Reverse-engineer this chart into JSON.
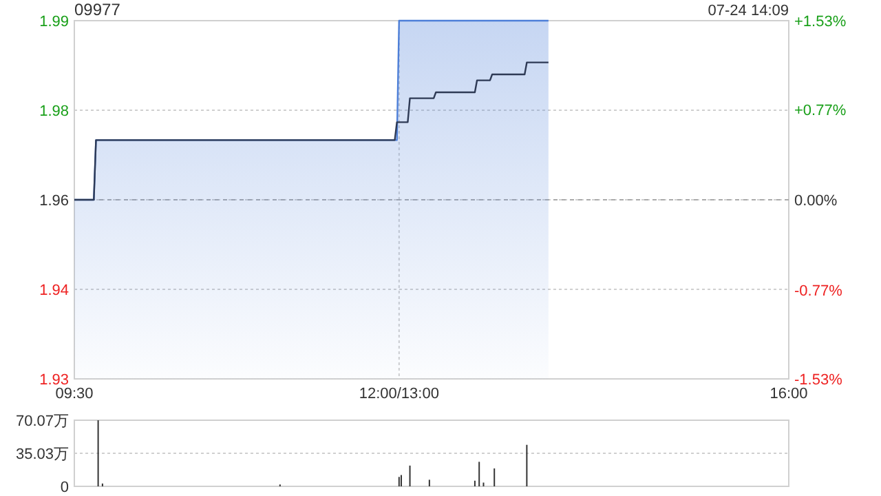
{
  "chart_data": [
    {
      "type": "line",
      "title": "09977",
      "annotations": [
        "07-24 14:09"
      ],
      "categories": [
        "09:30",
        null,
        null,
        null,
        null,
        null,
        null,
        null,
        null,
        null,
        null,
        null,
        null,
        null,
        null,
        null,
        null,
        null,
        null,
        null,
        null,
        null,
        null,
        null,
        null,
        null,
        null,
        null,
        null,
        null,
        null,
        null,
        null,
        null,
        null,
        null,
        null,
        null,
        null,
        null,
        null,
        null,
        null,
        null,
        null,
        null,
        null,
        null,
        null,
        null,
        null,
        null,
        null,
        null,
        null,
        null,
        null,
        null,
        null,
        null,
        null,
        null,
        null,
        null,
        null,
        null,
        null,
        null,
        null,
        null,
        null,
        null,
        null,
        null,
        null,
        null,
        null,
        null,
        null,
        null,
        null,
        null,
        null,
        null,
        null,
        null,
        null,
        null,
        null,
        null,
        null,
        null,
        null,
        null,
        null,
        null,
        null,
        null,
        null,
        null,
        null,
        null,
        null,
        null,
        null,
        null,
        null,
        null,
        null,
        null,
        null,
        null,
        null,
        null,
        null,
        null,
        null,
        null,
        null,
        null,
        null,
        null,
        null,
        null,
        null,
        null,
        null,
        null,
        null,
        null,
        null,
        null,
        null,
        null,
        null,
        null,
        null,
        null,
        null,
        null,
        null,
        null,
        null,
        null,
        null,
        null,
        null,
        null,
        null,
        null,
        "12:00/13:00",
        null,
        null,
        null,
        null,
        null,
        null,
        null,
        null,
        null,
        null,
        null,
        null,
        null,
        null,
        null,
        null,
        null,
        null,
        null,
        null,
        null,
        null,
        null,
        null,
        null,
        null,
        null,
        null,
        null,
        null,
        null,
        null,
        null,
        null,
        null,
        null,
        null,
        null,
        null,
        null,
        null,
        null,
        null,
        null,
        null,
        null,
        null,
        null,
        null,
        null,
        null,
        null,
        null,
        null,
        null,
        null,
        null,
        null,
        null,
        null,
        null,
        null,
        null,
        null,
        null,
        null,
        null,
        null,
        null,
        null,
        null,
        null,
        null,
        null,
        null,
        null,
        null,
        null,
        null,
        null,
        null,
        null,
        null,
        null,
        null,
        null,
        null,
        null,
        null,
        null,
        null,
        null,
        null,
        null,
        null,
        null,
        null,
        null,
        null,
        null,
        null,
        null,
        null,
        null,
        null,
        null,
        null,
        null,
        null,
        null,
        null,
        null,
        null,
        null,
        null,
        null,
        null,
        null,
        null,
        null,
        null,
        null,
        null,
        null,
        null,
        null,
        null,
        null,
        null,
        null,
        null,
        null,
        null,
        null,
        null,
        null,
        null,
        null,
        null,
        null,
        null,
        null,
        null,
        null,
        null,
        null,
        null,
        null,
        null,
        null,
        null,
        null,
        null,
        null,
        null,
        null,
        null,
        null,
        null,
        null,
        null,
        null,
        null,
        null,
        null,
        null,
        null,
        null,
        null,
        null,
        null,
        null,
        null,
        null,
        null,
        null,
        null,
        null,
        null,
        "16:00"
      ],
      "ylim": [
        1.93,
        1.99
      ],
      "yticks": [
        1.93,
        {
          "value": 1.945,
          "label": "1.94"
        },
        1.96,
        {
          "value": 1.975,
          "label": "1.98"
        },
        1.99
      ],
      "y2lim": [
        -1.53,
        1.53
      ],
      "y2ticks": [
        {
          "value": -1.53,
          "label": "-1.53%"
        },
        {
          "value": -0.77,
          "label": "-0.77%"
        },
        {
          "value": 0,
          "label": "0.00%"
        },
        {
          "value": 0.77,
          "label": "+0.77%"
        },
        {
          "value": 1.53,
          "label": "+1.53%"
        }
      ],
      "ref_lines": [
        {
          "axis": "y",
          "value": 1.96,
          "color": "#aaaaaa",
          "line_style": "dashed"
        }
      ],
      "grid": true,
      "series": [
        {
          "type": "area",
          "color": "#4d7fd8",
          "values": [
            1.96,
            1.96,
            1.96,
            1.96,
            1.96,
            1.96,
            1.96,
            1.96,
            1.96,
            1.96,
            1.97,
            1.97,
            1.97,
            1.97,
            1.97,
            1.97,
            1.97,
            1.97,
            1.97,
            1.97,
            1.97,
            1.97,
            1.97,
            1.97,
            1.97,
            1.97,
            1.97,
            1.97,
            1.97,
            1.97,
            1.97,
            1.97,
            1.97,
            1.97,
            1.97,
            1.97,
            1.97,
            1.97,
            1.97,
            1.97,
            1.97,
            1.97,
            1.97,
            1.97,
            1.97,
            1.97,
            1.97,
            1.97,
            1.97,
            1.97,
            1.97,
            1.97,
            1.97,
            1.97,
            1.97,
            1.97,
            1.97,
            1.97,
            1.97,
            1.97,
            1.97,
            1.97,
            1.97,
            1.97,
            1.97,
            1.97,
            1.97,
            1.97,
            1.97,
            1.97,
            1.97,
            1.97,
            1.97,
            1.97,
            1.97,
            1.97,
            1.97,
            1.97,
            1.97,
            1.97,
            1.97,
            1.97,
            1.97,
            1.97,
            1.97,
            1.97,
            1.97,
            1.97,
            1.97,
            1.97,
            1.97,
            1.97,
            1.97,
            1.97,
            1.97,
            1.97,
            1.97,
            1.97,
            1.97,
            1.97,
            1.97,
            1.97,
            1.97,
            1.97,
            1.97,
            1.97,
            1.97,
            1.97,
            1.97,
            1.97,
            1.97,
            1.97,
            1.97,
            1.97,
            1.97,
            1.97,
            1.97,
            1.97,
            1.97,
            1.97,
            1.97,
            1.97,
            1.97,
            1.97,
            1.97,
            1.97,
            1.97,
            1.97,
            1.97,
            1.97,
            1.97,
            1.97,
            1.97,
            1.97,
            1.97,
            1.97,
            1.97,
            1.97,
            1.97,
            1.97,
            1.97,
            1.97,
            1.97,
            1.97,
            1.97,
            1.97,
            1.97,
            1.97,
            1.97,
            1.97,
            1.99,
            1.99,
            1.99,
            1.99,
            1.99,
            1.99,
            1.99,
            1.99,
            1.99,
            1.99,
            1.99,
            1.99,
            1.99,
            1.99,
            1.99,
            1.99,
            1.99,
            1.99,
            1.99,
            1.99,
            1.99,
            1.99,
            1.99,
            1.99,
            1.99,
            1.99,
            1.99,
            1.99,
            1.99,
            1.99,
            1.99,
            1.99,
            1.99,
            1.99,
            1.99,
            1.99,
            1.99,
            1.99,
            1.99,
            1.99,
            1.99,
            1.99,
            1.99,
            1.99,
            1.99,
            1.99,
            1.99,
            1.99,
            1.99,
            1.99,
            1.99,
            1.99,
            1.99,
            1.99,
            1.99,
            1.99,
            1.99,
            1.99,
            1.99,
            1.99,
            1.99,
            1.99,
            1.99,
            1.99,
            1.99,
            1.99,
            1.99,
            1.99,
            1.99,
            1.99,
            null,
            null,
            null,
            null,
            null,
            null,
            null,
            null,
            null,
            null,
            null,
            null,
            null,
            null,
            null,
            null,
            null,
            null,
            null,
            null,
            null,
            null,
            null,
            null,
            null,
            null,
            null,
            null,
            null,
            null,
            null,
            null,
            null,
            null,
            null,
            null,
            null,
            null,
            null,
            null,
            null,
            null,
            null,
            null,
            null,
            null,
            null,
            null,
            null,
            null,
            null,
            null,
            null,
            null,
            null,
            null,
            null,
            null,
            null,
            null,
            null,
            null,
            null,
            null,
            null,
            null,
            null,
            null,
            null,
            null,
            null,
            null,
            null,
            null,
            null,
            null,
            null,
            null,
            null,
            null,
            null,
            null,
            null,
            null,
            null,
            null,
            null,
            null,
            null,
            null,
            null,
            null,
            null,
            null,
            null,
            null,
            null,
            null,
            null,
            null,
            null,
            null,
            null,
            null,
            null,
            null,
            null,
            null,
            null,
            null,
            null
          ]
        },
        {
          "type": "line",
          "color": "#2e3a55",
          "values": [
            1.96,
            1.96,
            1.96,
            1.96,
            1.96,
            1.96,
            1.96,
            1.96,
            1.96,
            1.96,
            1.97,
            1.97,
            1.97,
            1.97,
            1.97,
            1.97,
            1.97,
            1.97,
            1.97,
            1.97,
            1.97,
            1.97,
            1.97,
            1.97,
            1.97,
            1.97,
            1.97,
            1.97,
            1.97,
            1.97,
            1.97,
            1.97,
            1.97,
            1.97,
            1.97,
            1.97,
            1.97,
            1.97,
            1.97,
            1.97,
            1.97,
            1.97,
            1.97,
            1.97,
            1.97,
            1.97,
            1.97,
            1.97,
            1.97,
            1.97,
            1.97,
            1.97,
            1.97,
            1.97,
            1.97,
            1.97,
            1.97,
            1.97,
            1.97,
            1.97,
            1.97,
            1.97,
            1.97,
            1.97,
            1.97,
            1.97,
            1.97,
            1.97,
            1.97,
            1.97,
            1.97,
            1.97,
            1.97,
            1.97,
            1.97,
            1.97,
            1.97,
            1.97,
            1.97,
            1.97,
            1.97,
            1.97,
            1.97,
            1.97,
            1.97,
            1.97,
            1.97,
            1.97,
            1.97,
            1.97,
            1.97,
            1.97,
            1.97,
            1.97,
            1.97,
            1.97,
            1.97,
            1.97,
            1.97,
            1.97,
            1.97,
            1.97,
            1.97,
            1.97,
            1.97,
            1.97,
            1.97,
            1.97,
            1.97,
            1.97,
            1.97,
            1.97,
            1.97,
            1.97,
            1.97,
            1.97,
            1.97,
            1.97,
            1.97,
            1.97,
            1.97,
            1.97,
            1.97,
            1.97,
            1.97,
            1.97,
            1.97,
            1.97,
            1.97,
            1.97,
            1.97,
            1.97,
            1.97,
            1.97,
            1.97,
            1.97,
            1.97,
            1.97,
            1.97,
            1.97,
            1.97,
            1.97,
            1.97,
            1.97,
            1.97,
            1.97,
            1.97,
            1.97,
            1.97,
            1.973,
            1.973,
            1.973,
            1.973,
            1.973,
            1.973,
            1.977,
            1.977,
            1.977,
            1.977,
            1.977,
            1.977,
            1.977,
            1.977,
            1.977,
            1.977,
            1.977,
            1.977,
            1.978,
            1.978,
            1.978,
            1.978,
            1.978,
            1.978,
            1.978,
            1.978,
            1.978,
            1.978,
            1.978,
            1.978,
            1.978,
            1.978,
            1.978,
            1.978,
            1.978,
            1.978,
            1.978,
            1.98,
            1.98,
            1.98,
            1.98,
            1.98,
            1.98,
            1.98,
            1.981,
            1.981,
            1.981,
            1.981,
            1.981,
            1.981,
            1.981,
            1.981,
            1.981,
            1.981,
            1.981,
            1.981,
            1.981,
            1.981,
            1.981,
            1.981,
            1.983,
            1.983,
            1.983,
            1.983,
            1.983,
            1.983,
            1.983,
            1.983,
            1.983,
            1.983,
            1.983,
            null,
            null,
            null,
            null,
            null,
            null,
            null,
            null,
            null,
            null,
            null,
            null,
            null,
            null,
            null,
            null,
            null,
            null,
            null,
            null,
            null,
            null,
            null,
            null,
            null,
            null,
            null,
            null,
            null,
            null,
            null,
            null,
            null,
            null,
            null,
            null,
            null,
            null,
            null,
            null,
            null,
            null,
            null,
            null,
            null,
            null,
            null,
            null,
            null,
            null,
            null,
            null,
            null,
            null,
            null,
            null,
            null,
            null,
            null,
            null,
            null,
            null,
            null,
            null,
            null,
            null,
            null,
            null,
            null,
            null,
            null,
            null,
            null,
            null,
            null,
            null,
            null,
            null,
            null,
            null,
            null,
            null,
            null,
            null,
            null,
            null,
            null,
            null,
            null,
            null,
            null,
            null,
            null,
            null,
            null,
            null,
            null,
            null,
            null,
            null,
            null,
            null,
            null,
            null,
            null,
            null,
            null,
            null,
            null,
            null,
            null
          ]
        }
      ]
    },
    {
      "type": "bar",
      "categories": [
        null,
        null,
        null,
        null,
        null,
        null,
        null,
        null,
        null,
        null,
        null,
        null,
        null,
        null,
        null,
        null,
        null,
        null,
        null,
        null,
        null,
        null,
        null,
        null,
        null,
        null,
        null,
        null,
        null,
        null,
        null,
        null,
        null,
        null,
        null,
        null,
        null,
        null,
        null,
        null,
        null,
        null,
        null,
        null,
        null,
        null,
        null,
        null,
        null,
        null,
        null,
        null,
        null,
        null,
        null,
        null,
        null,
        null,
        null,
        null,
        null,
        null,
        null,
        null,
        null,
        null,
        null,
        null,
        null,
        null,
        null,
        null,
        null,
        null,
        null,
        null,
        null,
        null,
        null,
        null,
        null,
        null,
        null,
        null,
        null,
        null,
        null,
        null,
        null,
        null,
        null,
        null,
        null,
        null,
        null,
        null,
        null,
        null,
        null,
        null,
        null,
        null,
        null,
        null,
        null,
        null,
        null,
        null,
        null,
        null,
        null,
        null,
        null,
        null,
        null,
        null,
        null,
        null,
        null,
        null,
        null,
        null,
        null,
        null,
        null,
        null,
        null,
        null,
        null,
        null,
        null,
        null,
        null,
        null,
        null,
        null,
        null,
        null,
        null,
        null,
        null,
        null,
        null,
        null,
        null,
        null,
        null,
        null,
        null,
        null,
        null,
        null,
        null,
        null,
        null,
        null,
        null,
        null,
        null,
        null,
        null,
        null,
        null,
        null,
        null,
        null,
        null,
        null,
        null,
        null,
        null,
        null,
        null,
        null,
        null,
        null,
        null,
        null,
        null,
        null,
        null,
        null,
        null,
        null,
        null,
        null,
        null,
        null,
        null,
        null,
        null,
        null,
        null,
        null,
        null,
        null,
        null,
        null,
        null,
        null,
        null,
        null,
        null,
        null,
        null,
        null,
        null,
        null,
        null,
        null,
        null,
        null,
        null,
        null,
        null,
        null,
        null,
        null,
        null,
        null,
        null,
        null,
        null,
        null,
        null,
        null,
        null,
        null,
        null,
        null,
        null,
        null,
        null,
        null,
        null,
        null,
        null,
        null,
        null,
        null,
        null,
        null,
        null,
        null,
        null,
        null,
        null,
        null,
        null,
        null,
        null,
        null,
        null,
        null,
        null,
        null,
        null,
        null,
        null,
        null,
        null,
        null,
        null,
        null,
        null,
        null,
        null,
        null,
        null,
        null,
        null,
        null,
        null,
        null,
        null,
        null,
        null,
        null,
        null,
        null,
        null,
        null,
        null,
        null,
        null,
        null,
        null,
        null,
        null,
        null,
        null,
        null,
        null,
        null,
        null,
        null,
        null,
        null,
        null,
        null,
        null,
        null,
        null,
        null,
        null,
        null,
        null,
        null,
        null,
        null,
        null,
        null,
        null,
        null,
        null,
        null,
        null,
        null,
        null,
        null,
        null,
        null,
        null,
        null,
        null,
        null,
        null,
        null,
        null,
        null,
        null
      ],
      "tick_labels": "y",
      "ylim": [
        0,
        70.07
      ],
      "yticks": [
        0,
        {
          "value": 35.03,
          "label": "35.03万"
        },
        {
          "value": 70.07,
          "label": "70.07万"
        }
      ],
      "grid": "y",
      "series": [
        {
          "color": "#333333",
          "values": [
            null,
            null,
            null,
            null,
            null,
            null,
            null,
            null,
            null,
            null,
            null,
            70,
            null,
            3,
            null,
            null,
            null,
            null,
            null,
            null,
            null,
            null,
            null,
            null,
            null,
            null,
            null,
            null,
            null,
            null,
            null,
            null,
            null,
            null,
            null,
            null,
            null,
            null,
            null,
            null,
            null,
            null,
            null,
            null,
            null,
            null,
            null,
            null,
            null,
            null,
            null,
            null,
            null,
            null,
            null,
            null,
            null,
            null,
            null,
            null,
            null,
            null,
            null,
            null,
            null,
            null,
            null,
            null,
            null,
            null,
            null,
            null,
            null,
            null,
            null,
            null,
            null,
            null,
            null,
            null,
            null,
            null,
            null,
            null,
            null,
            null,
            null,
            null,
            null,
            null,
            null,
            null,
            null,
            null,
            null,
            2,
            null,
            null,
            null,
            null,
            null,
            null,
            null,
            null,
            null,
            null,
            null,
            null,
            null,
            null,
            null,
            null,
            null,
            null,
            null,
            null,
            null,
            null,
            null,
            null,
            null,
            null,
            null,
            null,
            null,
            null,
            null,
            null,
            null,
            null,
            null,
            null,
            null,
            null,
            null,
            null,
            null,
            null,
            null,
            null,
            null,
            null,
            null,
            null,
            null,
            null,
            null,
            null,
            null,
            null,
            10,
            12,
            null,
            null,
            null,
            22,
            null,
            null,
            null,
            null,
            null,
            null,
            null,
            null,
            7,
            null,
            null,
            null,
            null,
            null,
            null,
            null,
            null,
            null,
            null,
            null,
            null,
            null,
            null,
            null,
            null,
            null,
            null,
            null,
            null,
            6,
            null,
            26,
            null,
            4,
            null,
            null,
            null,
            null,
            19,
            null,
            null,
            null,
            null,
            null,
            null,
            null,
            null,
            null,
            null,
            null,
            null,
            null,
            null,
            44,
            null,
            null,
            null,
            null,
            null,
            null,
            null,
            null,
            null,
            null,
            null,
            null,
            null,
            null,
            null,
            null,
            null,
            null,
            null,
            null,
            null,
            null,
            null,
            null,
            null,
            null,
            null,
            null,
            null,
            null,
            null,
            null,
            null,
            null,
            null,
            null,
            null,
            null,
            null,
            null,
            null,
            null,
            null,
            null,
            null,
            null,
            null,
            null,
            null,
            null,
            null,
            null,
            null,
            null,
            null,
            null,
            null,
            null,
            null,
            null,
            null,
            null,
            null,
            null,
            null,
            null,
            null,
            null,
            null,
            null,
            null,
            null,
            null,
            null,
            null,
            null,
            null,
            null,
            null,
            null,
            null,
            null,
            null,
            null,
            null,
            null,
            null,
            null,
            null,
            null,
            null,
            null,
            null,
            null,
            null,
            null,
            null,
            null,
            null,
            null,
            null,
            null,
            null,
            null,
            null,
            null,
            null,
            null,
            null,
            null,
            null,
            null,
            null,
            null,
            null,
            null,
            null,
            null,
            null,
            null,
            null
          ]
        }
      ]
    }
  ]
}
